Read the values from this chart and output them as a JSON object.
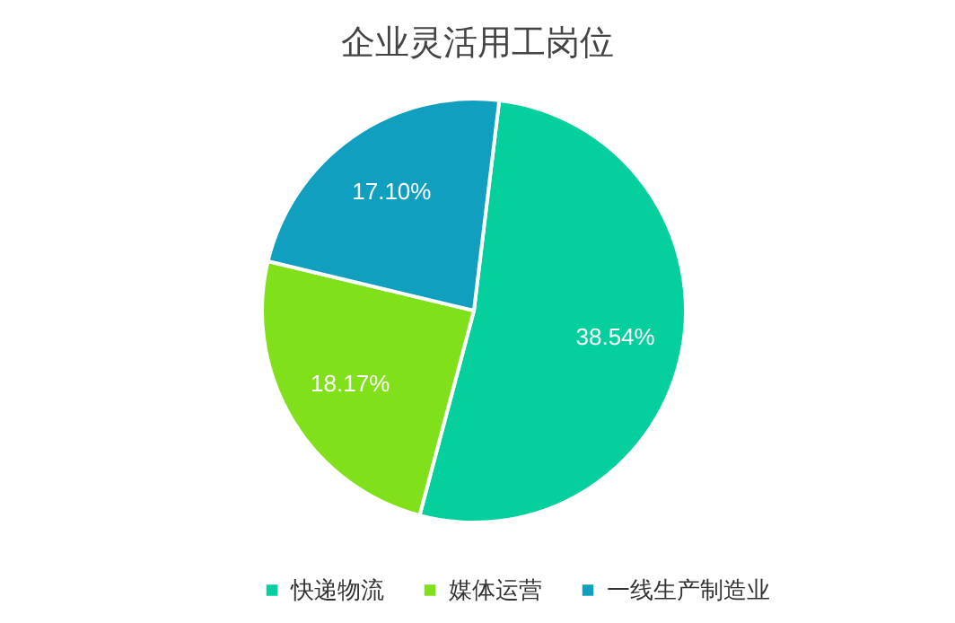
{
  "chart_data": {
    "type": "pie",
    "title": "企业灵活用工岗位",
    "categories": [
      "快递物流",
      "媒体运营",
      "一线生产制造业"
    ],
    "values": [
      38.54,
      18.17,
      17.1
    ],
    "colors": [
      "#05cf9c",
      "#80e01a",
      "#109fbf"
    ],
    "value_labels": [
      "38.54%",
      "18.17%",
      "17.10%"
    ],
    "legend": "bottom"
  }
}
